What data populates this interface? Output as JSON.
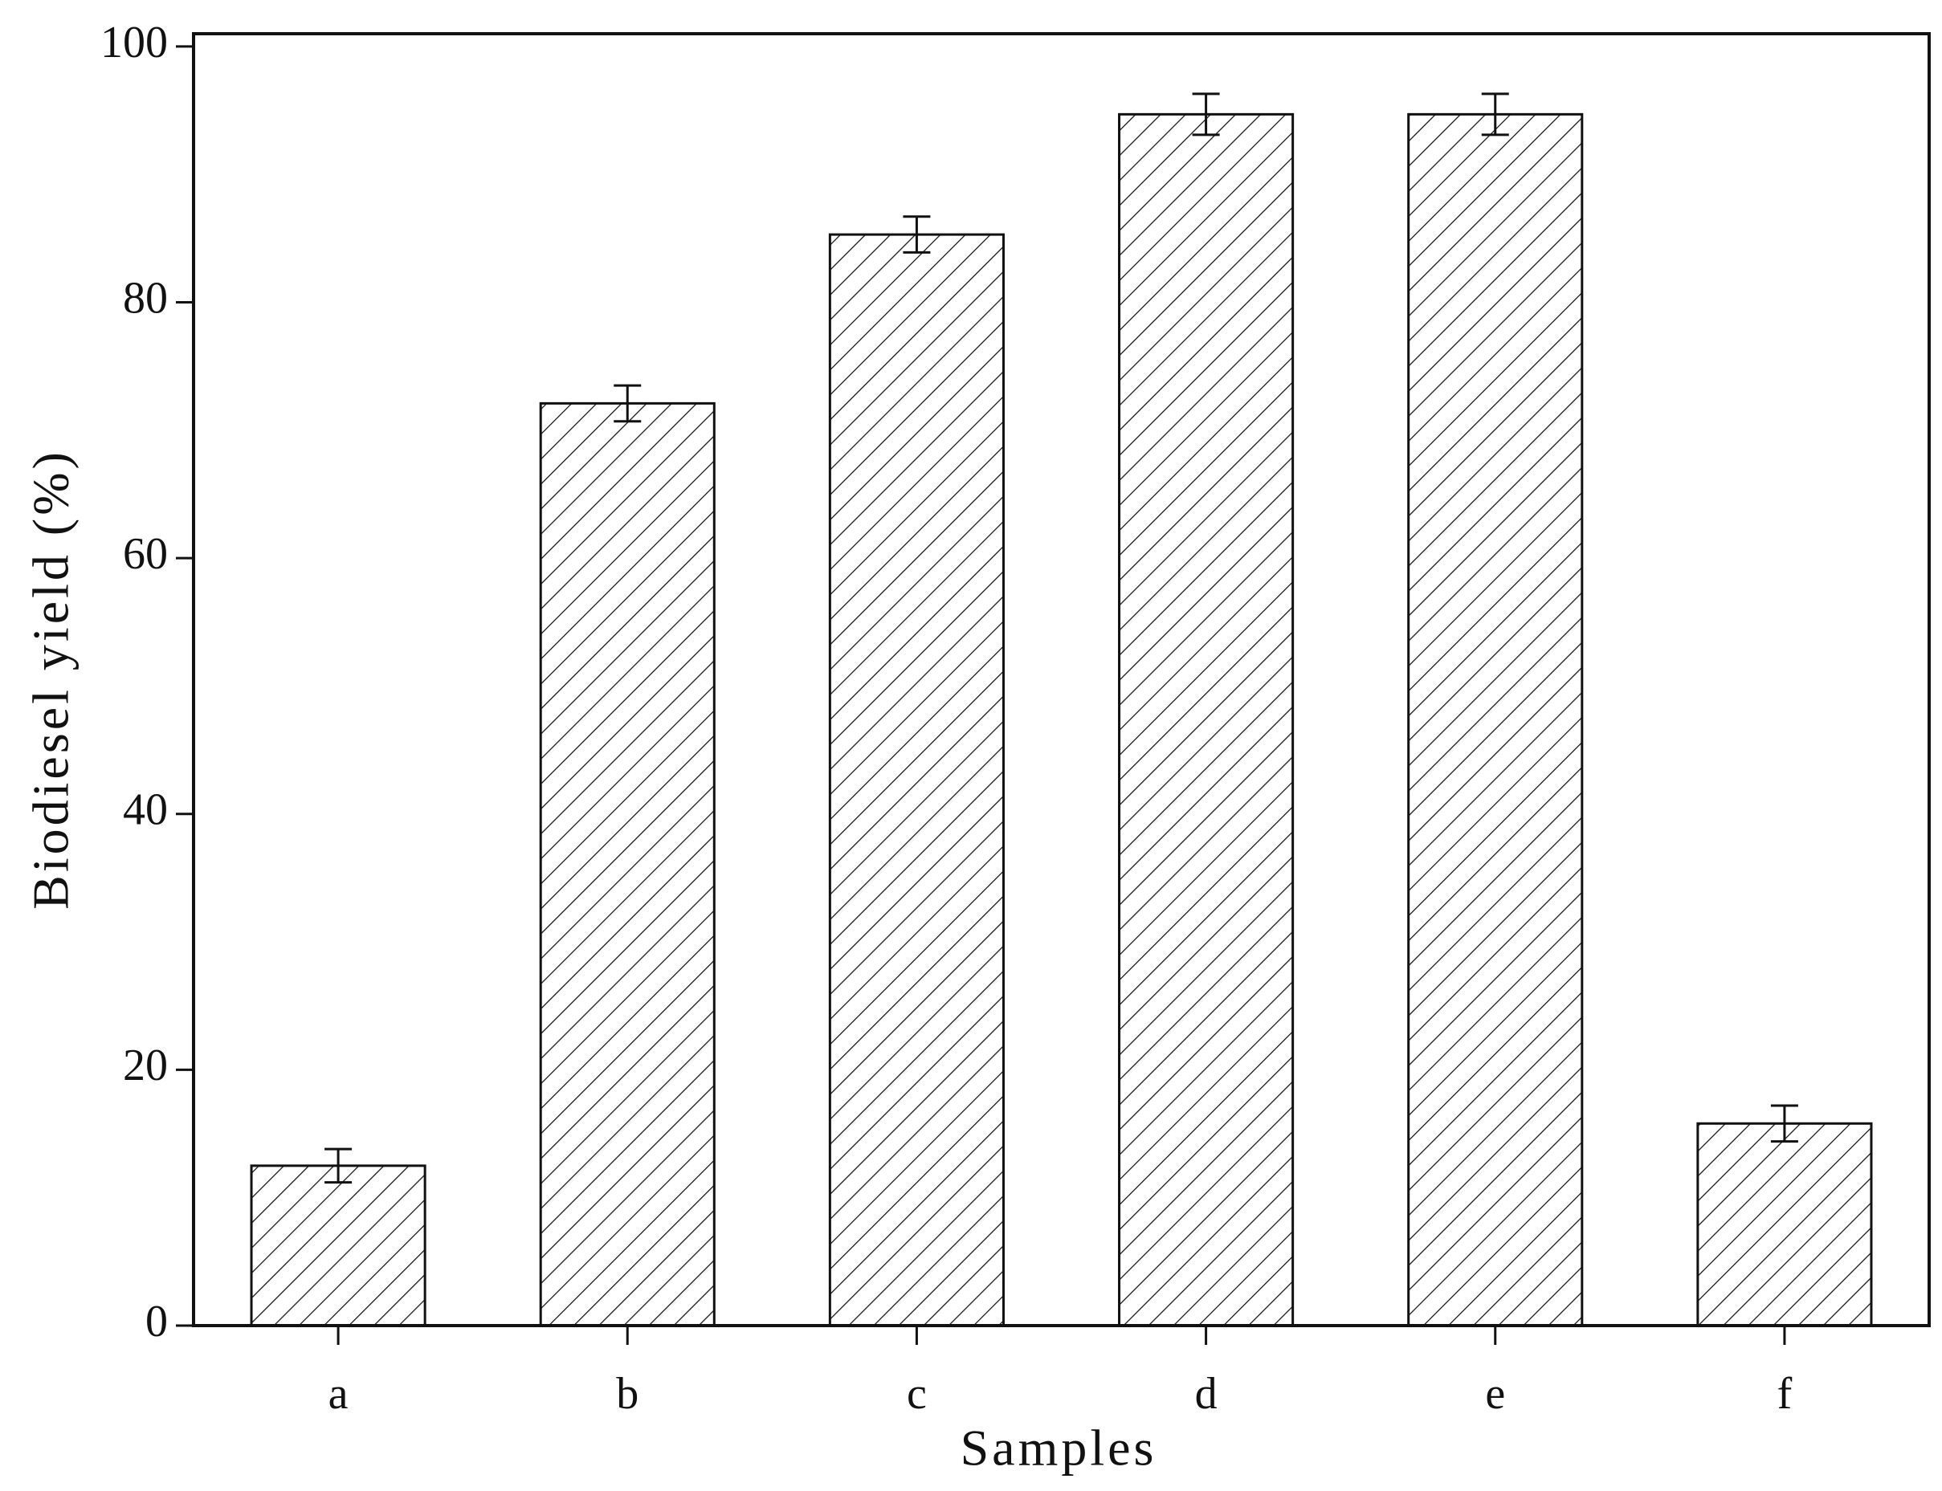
{
  "chart_data": {
    "type": "bar",
    "x_label": "Samples",
    "y_label": "Biodiesel yield (%)",
    "categories": [
      "a",
      "b",
      "c",
      "d",
      "e",
      "f"
    ],
    "values": [
      12.5,
      72.1,
      85.3,
      94.7,
      94.7,
      15.8
    ],
    "errors": [
      1.3,
      1.4,
      1.4,
      1.6,
      1.6,
      1.4
    ],
    "color": "#111111",
    "ylim": [
      0,
      101
    ],
    "yticks": [
      0,
      20,
      40,
      60,
      80,
      100
    ],
    "grid": false
  }
}
